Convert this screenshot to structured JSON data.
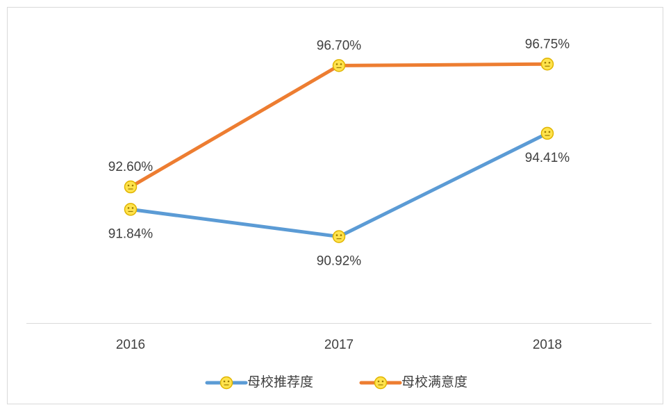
{
  "chart_data": {
    "type": "line",
    "categories": [
      "2016",
      "2017",
      "2018"
    ],
    "series": [
      {
        "name": "母校推荐度",
        "color": "#5b9bd5",
        "values": [
          91.84,
          90.92,
          94.41
        ],
        "value_labels": [
          "91.84%",
          "90.92%",
          "94.41%"
        ]
      },
      {
        "name": "母校满意度",
        "color": "#ed7d31",
        "values": [
          92.6,
          96.7,
          96.75
        ],
        "value_labels": [
          "92.60%",
          "96.70%",
          "96.75%"
        ]
      }
    ],
    "ylim": [
      88,
      98
    ],
    "legend": "bottom"
  }
}
